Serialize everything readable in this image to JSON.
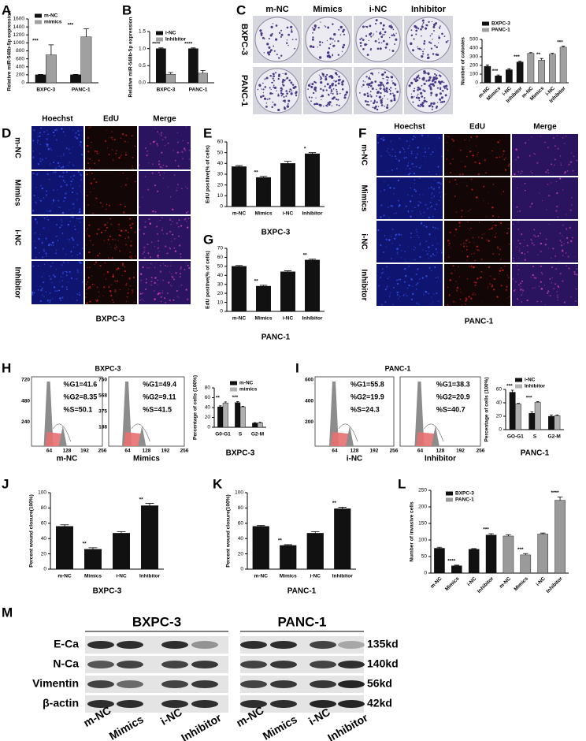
{
  "panel_letters": [
    "A",
    "B",
    "C",
    "D",
    "E",
    "F",
    "G",
    "H",
    "I",
    "J",
    "K",
    "L",
    "M"
  ],
  "chart_data": [
    {
      "type": "bar",
      "ylabel": "Relative miR-548b-5p expression",
      "categories": [
        "BXPC-3",
        "PANC-1"
      ],
      "series": [
        {
          "name": "m-NC",
          "color": "#111111",
          "values": [
            200,
            200
          ],
          "errors": [
            10,
            10
          ]
        },
        {
          "name": "mimics",
          "color": "#a0a0a0",
          "values": [
            700,
            1150
          ],
          "errors": [
            250,
            200
          ]
        }
      ],
      "ylim": [
        0,
        1600
      ],
      "yticks": [
        0,
        200,
        400,
        600,
        800,
        1000,
        1200,
        1400,
        1600
      ],
      "significance": [
        "***",
        "***"
      ]
    },
    {
      "type": "bar",
      "ylabel": "Relative miR-548b-5p expression",
      "categories": [
        "BXPC-3",
        "PANC-1"
      ],
      "series": [
        {
          "name": "i-NC",
          "color": "#111111",
          "values": [
            1.0,
            1.0
          ],
          "errors": [
            0.02,
            0.02
          ]
        },
        {
          "name": "Inhibitor",
          "color": "#a0a0a0",
          "values": [
            0.25,
            0.28
          ],
          "errors": [
            0.05,
            0.08
          ]
        }
      ],
      "ylim": [
        0,
        1.5
      ],
      "yticks": [
        {
          "value": 0,
          "label": "0.0"
        },
        {
          "value": 0.5,
          "label": "0.5"
        },
        {
          "value": 1,
          "label": "1.0"
        },
        {
          "value": 1.5,
          "label": "1.5"
        }
      ],
      "significance": [
        "****",
        "****"
      ]
    },
    {
      "type": "bar",
      "ylabel": "Number of colonies",
      "categories": [
        "m-NC",
        "Mimics",
        "i-NC",
        "Inhibitor",
        "m-NC",
        "Mimics",
        "i-NC",
        "Inhibitor"
      ],
      "series": [
        {
          "name": "BXPC-3",
          "color": "#111111",
          "values": [
            190,
            80,
            150,
            240,
            null,
            null,
            null,
            null
          ],
          "errors": [
            15,
            10,
            12,
            10,
            null,
            null,
            null,
            null
          ]
        },
        {
          "name": "PANC-1",
          "color": "#a0a0a0",
          "values": [
            null,
            null,
            null,
            null,
            340,
            260,
            330,
            410
          ],
          "errors": [
            null,
            null,
            null,
            null,
            8,
            20,
            10,
            12
          ]
        }
      ],
      "ylim": [
        0,
        500
      ],
      "yticks": [
        0,
        100,
        200,
        300,
        400,
        500
      ],
      "significance": [
        null,
        "***",
        null,
        "***",
        null,
        "**",
        null,
        "***"
      ]
    },
    {
      "type": "bar",
      "ylabel": "EdU positive(% of cells)",
      "xlabel": "BXPC-3",
      "categories": [
        "m-NC",
        "Mimics",
        "i-NC",
        "Inhibitor"
      ],
      "values": [
        37,
        27,
        40,
        49
      ],
      "errors": [
        1,
        1,
        2,
        1
      ],
      "color": "#111111",
      "ylim": [
        0,
        60
      ],
      "yticks": [
        0,
        10,
        20,
        30,
        40,
        50,
        60
      ],
      "significance": [
        null,
        "**",
        null,
        "*"
      ]
    },
    {
      "type": "bar",
      "ylabel": "EdU positive(% of cells)",
      "xlabel": "PANC-1",
      "categories": [
        "m-NC",
        "Mimics",
        "i-NC",
        "Inhibitor"
      ],
      "values": [
        50,
        28,
        44,
        57
      ],
      "errors": [
        1,
        1,
        1,
        1
      ],
      "color": "#111111",
      "ylim": [
        0,
        70
      ],
      "yticks": [
        0,
        10,
        20,
        30,
        40,
        50,
        60,
        70
      ],
      "significance": [
        null,
        "**",
        null,
        "**"
      ]
    },
    {
      "type": "bar",
      "ylabel": "Percentage of cells (100%)",
      "xlabel": "BXPC-3",
      "categories": [
        "G0-G1",
        "S",
        "G2-M"
      ],
      "series": [
        {
          "name": "m-NC",
          "color": "#111111",
          "values": [
            41.6,
            50.1,
            8.35
          ],
          "errors": [
            2,
            2,
            1
          ]
        },
        {
          "name": "mimics",
          "color": "#b0b0b0",
          "values": [
            49.4,
            41.5,
            9.11
          ],
          "errors": [
            2,
            1,
            1
          ]
        }
      ],
      "ylim": [
        0,
        80
      ],
      "yticks": [
        0,
        20,
        40,
        60,
        80
      ],
      "significance": [
        "**",
        "***",
        null
      ]
    },
    {
      "type": "bar",
      "ylabel": "Percentage of cells (100%)",
      "xlabel": "PANC-1",
      "categories": [
        "GO-G1",
        "S",
        "G2-M"
      ],
      "series": [
        {
          "name": "i-NC",
          "color": "#111111",
          "values": [
            55.8,
            24.3,
            19.9
          ],
          "errors": [
            3,
            2,
            2
          ]
        },
        {
          "name": "Inhibitor",
          "color": "#b0b0b0",
          "values": [
            38.3,
            40.7,
            20.9
          ],
          "errors": [
            1,
            1,
            1
          ]
        }
      ],
      "ylim": [
        0,
        60
      ],
      "yticks": [
        0,
        20,
        40,
        60
      ],
      "significance": [
        "***",
        "***",
        null
      ]
    },
    {
      "type": "bar",
      "ylabel": "Percent wound closure(100%)",
      "xlabel": "BXPC-3",
      "categories": [
        "m-NC",
        "Mimics",
        "i-NC",
        "Inhibitor"
      ],
      "values": [
        56,
        26,
        47,
        83
      ],
      "errors": [
        2,
        2,
        2,
        3
      ],
      "color": "#111111",
      "ylim": [
        0,
        100
      ],
      "yticks": [
        0,
        20,
        40,
        60,
        80,
        100
      ],
      "significance": [
        null,
        "**",
        null,
        "**"
      ]
    },
    {
      "type": "bar",
      "ylabel": "Percent wound closure(100%)",
      "xlabel": "PANC-1",
      "categories": [
        "m-NC",
        "Mimics",
        "i-NC",
        "Inhibitor"
      ],
      "values": [
        56,
        31,
        47,
        79
      ],
      "errors": [
        1,
        1,
        2,
        2
      ],
      "color": "#111111",
      "ylim": [
        0,
        100
      ],
      "yticks": [
        0,
        20,
        40,
        60,
        80,
        100
      ],
      "significance": [
        null,
        "**",
        null,
        "**"
      ]
    },
    {
      "type": "bar",
      "ylabel": "Number of invasive cells",
      "categories": [
        "m-NC",
        "Mimics",
        "i-NC",
        "Inhibitor",
        "m-NC",
        "Mimics",
        "i-NC",
        "Inhibitor"
      ],
      "series": [
        {
          "name": "BXPC-3",
          "color": "#111111",
          "values": [
            75,
            22,
            72,
            115,
            null,
            null,
            null,
            null
          ],
          "errors": [
            3,
            2,
            2,
            4,
            null,
            null,
            null,
            null
          ]
        },
        {
          "name": "PANC-1",
          "color": "#9a9a9a",
          "values": [
            null,
            null,
            null,
            null,
            112,
            55,
            118,
            220
          ],
          "errors": [
            null,
            null,
            null,
            null,
            4,
            4,
            3,
            10
          ]
        }
      ],
      "ylim": [
        0,
        250
      ],
      "yticks": [
        0,
        50,
        100,
        150,
        200,
        250
      ],
      "significance": [
        null,
        "****",
        null,
        "***",
        null,
        "***",
        null,
        "****"
      ]
    }
  ],
  "colony_images": {
    "columns": [
      "m-NC",
      "Mimics",
      "i-NC",
      "Inhibitor"
    ],
    "rows": [
      "BXPC-3",
      "PANC-1"
    ]
  },
  "edu_images": [
    {
      "columns": [
        "Hoechst",
        "EdU",
        "Merge"
      ],
      "rows": [
        "m-NC",
        "Mimics",
        "i-NC",
        "Inhibitor"
      ],
      "caption": "BXPC-3"
    },
    {
      "columns": [
        "Hoechst",
        "EdU",
        "Merge"
      ],
      "rows": [
        "m-NC",
        "Mimics",
        "i-NC",
        "Inhibitor"
      ],
      "caption": "PANC-1"
    }
  ],
  "flow_histograms": [
    {
      "title": "BXPC-3",
      "plots": [
        {
          "stats": [
            "%G1=41.6",
            "%G2=8.35",
            "%S=50.1"
          ],
          "xticks": [
            "64",
            "128",
            "192",
            "256"
          ],
          "yticks": [
            "720",
            "480",
            "240"
          ],
          "label": "m-NC"
        },
        {
          "stats": [
            "%G1=49.4",
            "%G2=9.11",
            "%S=41.5"
          ],
          "xticks": [
            "64",
            "128",
            "192",
            "256"
          ],
          "yticks": [
            "750",
            "568",
            "375",
            "188"
          ],
          "label": "Mimics"
        }
      ]
    },
    {
      "title": "PANC-1",
      "plots": [
        {
          "stats": [
            "%G1=55.8",
            "%G2=19.9",
            "%S=24.3"
          ],
          "xticks": [
            "64",
            "128",
            "192",
            "256"
          ],
          "yticks": [
            "600",
            "400",
            "200"
          ],
          "label": "i-NC"
        },
        {
          "stats": [
            "%G1=38.3",
            "%G2=20.9",
            "%S=40.7"
          ],
          "xticks": [
            "64",
            "128",
            "192",
            "256"
          ],
          "yticks": [],
          "label": "Inhibitor"
        }
      ]
    }
  ],
  "western_blot": {
    "groups": [
      "BXPC-3",
      "PANC-1"
    ],
    "proteins": [
      "E-Ca",
      "N-Ca",
      "Vimentin",
      "β-actin"
    ],
    "sizes": [
      "135kd",
      "140kd",
      "56kd",
      "42kd"
    ],
    "lanes": [
      "m-NC",
      "Mimics",
      "i-NC",
      "Inhibitor",
      "m-NC",
      "Mimics",
      "i-NC",
      "Inhibitor"
    ]
  }
}
